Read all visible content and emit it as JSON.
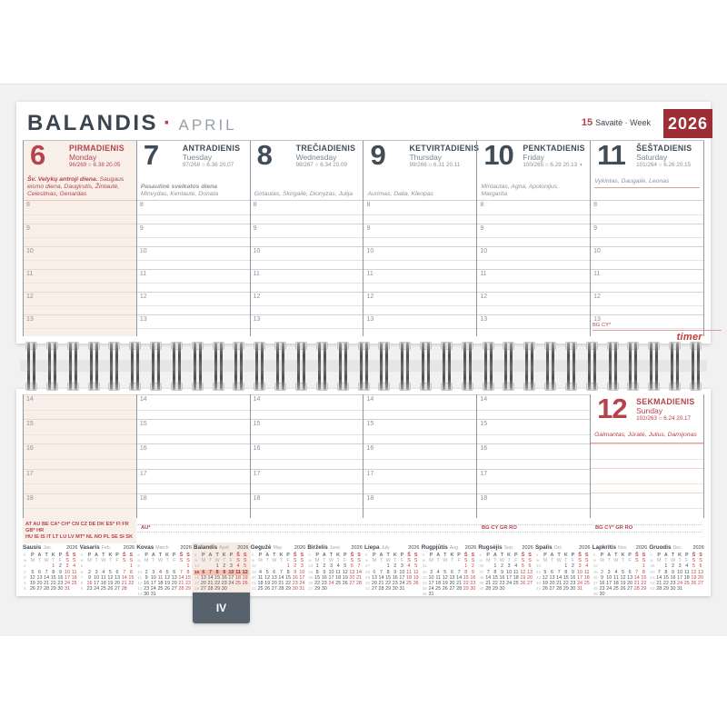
{
  "header": {
    "month_lt": "BALANDIS",
    "separator": "·",
    "month_en": "APRIL",
    "week_number": "15",
    "week_label": "Savaitė · Week",
    "year": "2026"
  },
  "brand": "timer",
  "month_tab": "IV",
  "hours_top": [
    "8",
    "9",
    "10",
    "11",
    "12",
    "13"
  ],
  "hours_bottom": [
    "14",
    "15",
    "16",
    "17",
    "18"
  ],
  "days": [
    {
      "num": "6",
      "lt": "PIRMADIENIS",
      "en": "Monday",
      "stat": "96/269",
      "sun_symbol": "○",
      "sun": "6.38 20.05",
      "moon": "",
      "holiday": "Šv. Velykų antroji diena.",
      "names": "Saugaus eismo diena, Daugirutis, Žintautė, Celestinas, Genardas",
      "theme": "red"
    },
    {
      "num": "7",
      "lt": "ANTRADIENIS",
      "en": "Tuesday",
      "stat": "97/268",
      "sun_symbol": "○",
      "sun": "6.36 20.07",
      "moon": "",
      "holiday": "Pasaulinė sveikatos diena",
      "names": "Minvydas, Kentautė, Donata",
      "theme": "normal"
    },
    {
      "num": "8",
      "lt": "TREČIADIENIS",
      "en": "Wednesday",
      "stat": "98/267",
      "sun_symbol": "○",
      "sun": "6.34 20.09",
      "moon": "",
      "holiday": "",
      "names": "Girtautas, Skirgailė, Dionyzas, Julija",
      "theme": "normal"
    },
    {
      "num": "9",
      "lt": "KETVIRTADIENIS",
      "en": "Thursday",
      "stat": "99/266",
      "sun_symbol": "○",
      "sun": "6.31 20.11",
      "moon": "",
      "holiday": "",
      "names": "Aurimas, Dalia, Kleopas",
      "theme": "normal"
    },
    {
      "num": "10",
      "lt": "PENKTADIENIS",
      "en": "Friday",
      "stat": "100/265",
      "sun_symbol": "○",
      "sun": "6.29 20.13",
      "moon": "◑",
      "holiday": "",
      "names": "Mintautas, Agna, Apolonijus, Margarita",
      "theme": "normal"
    },
    {
      "num": "11",
      "lt": "ŠEŠTADIENIS",
      "en": "Saturday",
      "stat": "101/264",
      "sun_symbol": "○",
      "sun": "6.26 20.15",
      "moon": "",
      "holiday": "",
      "names": "Vykintas, Daugailė, Leonas",
      "theme": "normal"
    }
  ],
  "sunday": {
    "num": "12",
    "lt": "SEKMADIENIS",
    "en": "Sunday",
    "stat": "102/263",
    "sun_symbol": "○",
    "sun": "6.24 20.17",
    "names": "Galmantas, Jūratė, Julius, Damijonas"
  },
  "footnotes": {
    "saturday_top": "BG CY*",
    "monday_line1": "AT AU BE CA* CH* CN CZ DE DK ES* FI FR GB* HR",
    "monday_line2": "HU IE IS IT LT LU LV MT* NL NO PL SE SI SK",
    "tuesday": "AU*",
    "friday": "BG CY GR RO",
    "saturday": "BG CY* GR RO"
  },
  "mini_calendar_header": {
    "week_lt": "s",
    "week_en": "w",
    "days_lt": [
      "P",
      "A",
      "T",
      "K",
      "P",
      "Š",
      "S"
    ],
    "days_en": [
      "M",
      "T",
      "W",
      "T",
      "F",
      "S",
      "S"
    ]
  },
  "mini_calendars": [
    {
      "lt": "Sausis",
      "en": "Jan.",
      "year": "2026",
      "first_dow": 3,
      "days": 31,
      "weeks": [
        1,
        2,
        3,
        4,
        5
      ],
      "red_extra": [
        1
      ],
      "current_week": 0
    },
    {
      "lt": "Vasaris",
      "en": "Feb.",
      "year": "2026",
      "first_dow": 6,
      "days": 28,
      "weeks": [
        5,
        6,
        7,
        8,
        9
      ],
      "red_extra": [
        16
      ],
      "current_week": 0
    },
    {
      "lt": "Kovas",
      "en": "March",
      "year": "2026",
      "first_dow": 6,
      "days": 31,
      "weeks": [
        9,
        10,
        11,
        12,
        13,
        14
      ],
      "red_extra": [
        11
      ],
      "current_week": 0
    },
    {
      "lt": "Balandis",
      "en": "April",
      "year": "2026",
      "first_dow": 2,
      "days": 30,
      "weeks": [
        14,
        15,
        16,
        17,
        18
      ],
      "red_extra": [
        6
      ],
      "current_week": 15
    },
    {
      "lt": "Gegužė",
      "en": "May",
      "year": "2026",
      "first_dow": 4,
      "days": 31,
      "weeks": [
        18,
        19,
        20,
        21,
        22
      ],
      "red_extra": [
        1
      ],
      "current_week": 0
    },
    {
      "lt": "Birželis",
      "en": "June",
      "year": "2026",
      "first_dow": 0,
      "days": 30,
      "weeks": [
        23,
        24,
        25,
        26,
        27
      ],
      "red_extra": [
        24
      ],
      "current_week": 0
    },
    {
      "lt": "Liepa",
      "en": "July",
      "year": "2026",
      "first_dow": 2,
      "days": 31,
      "weeks": [
        27,
        28,
        29,
        30,
        31
      ],
      "red_extra": [
        6
      ],
      "current_week": 0
    },
    {
      "lt": "Rugpjūtis",
      "en": "Aug.",
      "year": "2026",
      "first_dow": 5,
      "days": 31,
      "weeks": [
        31,
        32,
        33,
        34,
        35,
        36
      ],
      "red_extra": [
        15
      ],
      "current_week": 0
    },
    {
      "lt": "Rugsėjis",
      "en": "Sep.",
      "year": "2026",
      "first_dow": 1,
      "days": 30,
      "weeks": [
        36,
        37,
        38,
        39,
        40
      ],
      "red_extra": [],
      "current_week": 0
    },
    {
      "lt": "Spalis",
      "en": "Oct.",
      "year": "2026",
      "first_dow": 3,
      "days": 31,
      "weeks": [
        40,
        41,
        42,
        43,
        44
      ],
      "red_extra": [],
      "current_week": 0
    },
    {
      "lt": "Lapkritis",
      "en": "Nov.",
      "year": "2026",
      "first_dow": 6,
      "days": 30,
      "weeks": [
        44,
        45,
        46,
        47,
        48,
        49
      ],
      "red_extra": [
        2
      ],
      "current_week": 0
    },
    {
      "lt": "Gruodis",
      "en": "Dec.",
      "year": "2026",
      "first_dow": 1,
      "days": 31,
      "weeks": [
        49,
        50,
        51,
        52,
        53
      ],
      "red_extra": [
        24,
        25
      ],
      "current_week": 0
    }
  ],
  "colors": {
    "maroon": "#9e2e36",
    "red": "#b5434b",
    "slate": "#414c57",
    "gray_text": "#8d949b",
    "pink_bg": "#f9efe9",
    "highlight": "#f2c6b7",
    "tab_bg": "#57626c",
    "backdrop": "#f1f1f1"
  }
}
